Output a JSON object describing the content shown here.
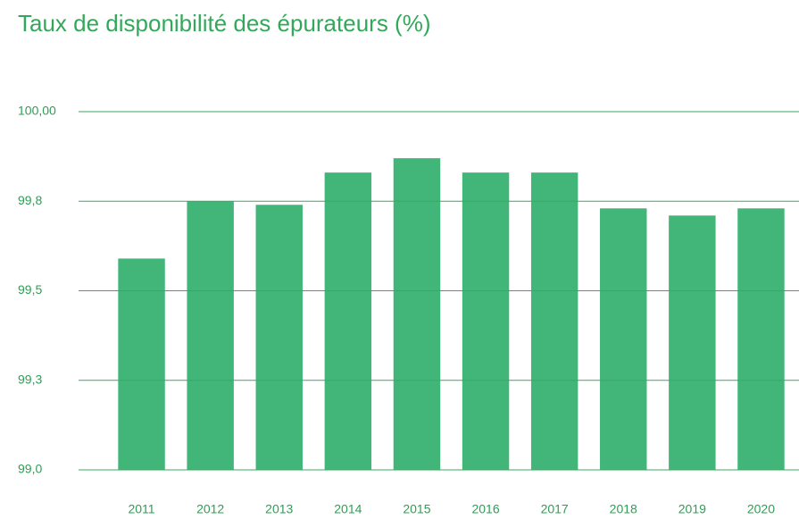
{
  "chart_data": {
    "type": "bar",
    "title": "Taux de disponibilité des épurateurs (%)",
    "categories": [
      "2011",
      "2012",
      "2013",
      "2014",
      "2015",
      "2016",
      "2017",
      "2018",
      "2019",
      "2020"
    ],
    "values": [
      99.59,
      99.75,
      99.74,
      99.83,
      99.87,
      99.83,
      99.83,
      99.73,
      99.71,
      99.73
    ],
    "color": "#41b678",
    "ylim": [
      99.0,
      100.0
    ],
    "yticks": [
      {
        "value": 99.0,
        "label": "99,0"
      },
      {
        "value": 99.25,
        "label": "99,3"
      },
      {
        "value": 99.5,
        "label": "99,5"
      },
      {
        "value": 99.75,
        "label": "99,8"
      },
      {
        "value": 100.0,
        "label": "100,00"
      }
    ],
    "grid": true
  }
}
